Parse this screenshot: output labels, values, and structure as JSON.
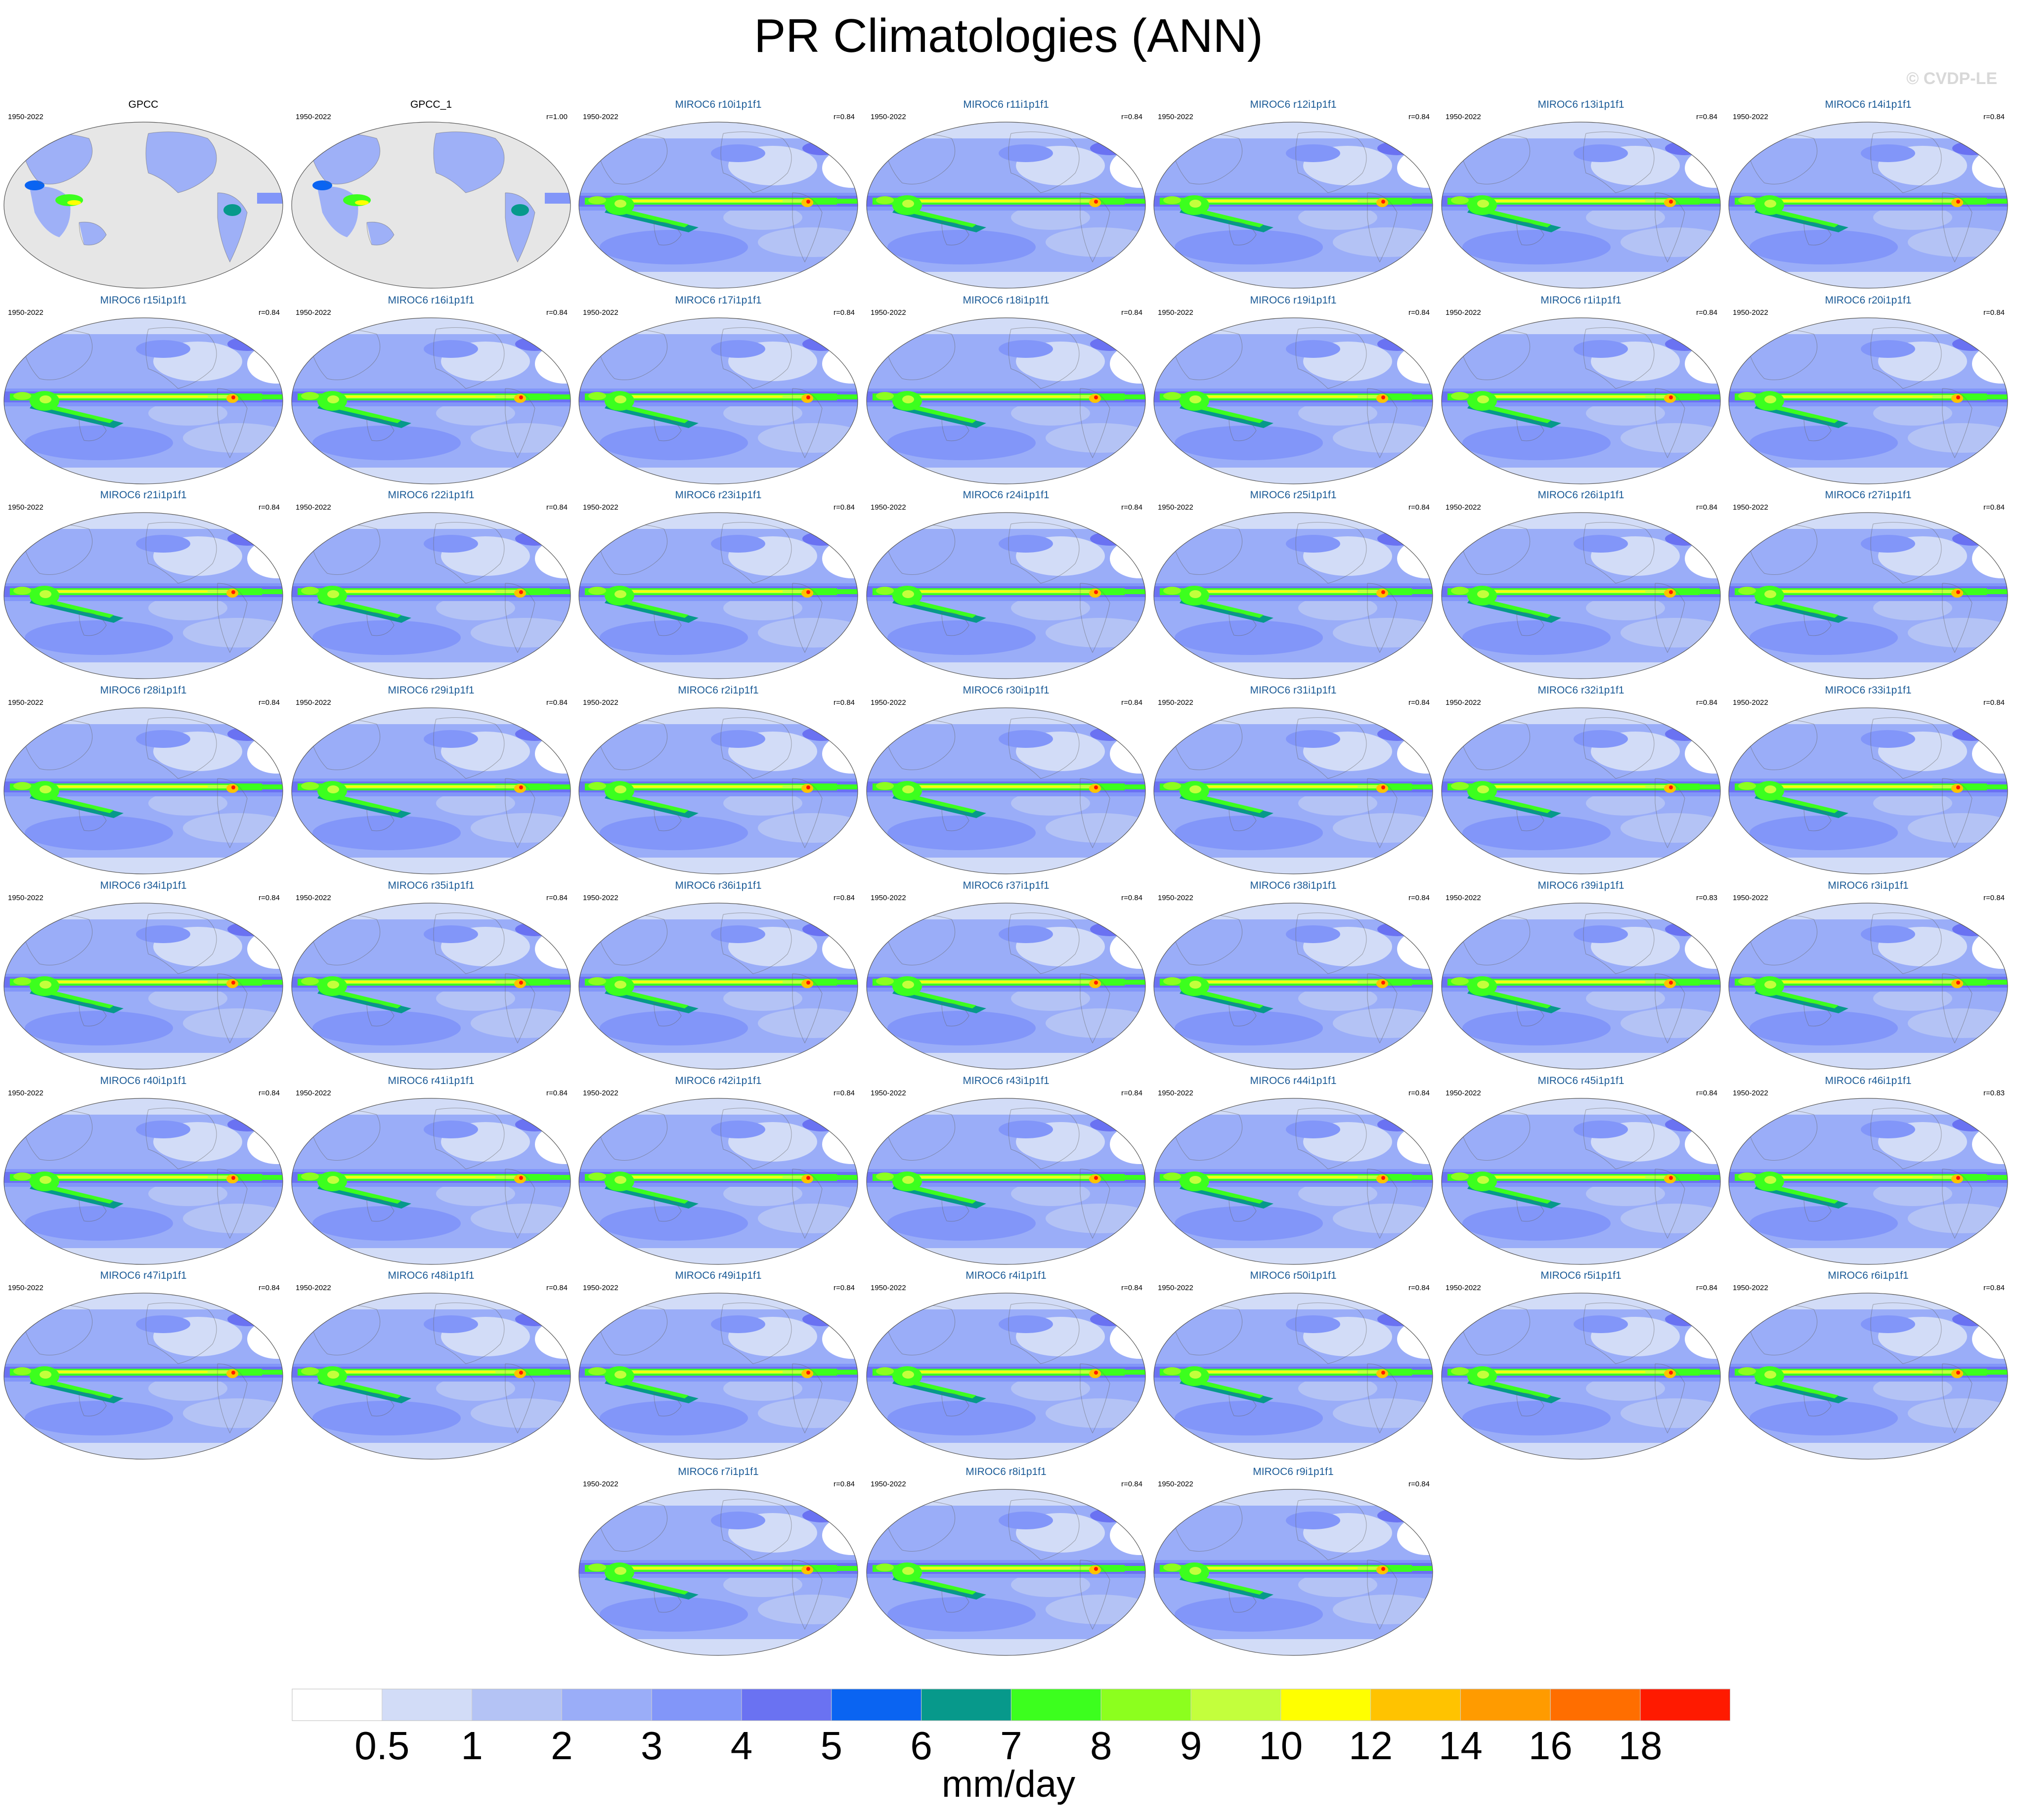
{
  "title": "PR Climatologies (ANN)",
  "watermark": "© CVDP-LE",
  "chart_data": {
    "type": "heatmap",
    "title": "PR Climatologies (ANN)",
    "units": "mm/day",
    "period": "1950-2022",
    "colorbar": {
      "ticks": [
        "0.5",
        "1",
        "2",
        "3",
        "4",
        "5",
        "6",
        "7",
        "8",
        "9",
        "10",
        "12",
        "14",
        "16",
        "18"
      ],
      "colors": [
        "#ffffff",
        "#d2dcf7",
        "#b4c3f5",
        "#9aadf8",
        "#8296f9",
        "#6a72f2",
        "#0a64f2",
        "#07998b",
        "#3cff1e",
        "#8cff1e",
        "#c3ff3c",
        "#ffff00",
        "#ffc300",
        "#ff9b00",
        "#ff6e00",
        "#ff1a00"
      ]
    },
    "panels": [
      {
        "name": "GPCC",
        "period": "1950-2022",
        "r": "",
        "obs": true
      },
      {
        "name": "GPCC_1",
        "period": "1950-2022",
        "r": "r=1.00",
        "obs": true
      },
      {
        "name": "MIROC6 r10i1p1f1",
        "period": "1950-2022",
        "r": "r=0.84"
      },
      {
        "name": "MIROC6 r11i1p1f1",
        "period": "1950-2022",
        "r": "r=0.84"
      },
      {
        "name": "MIROC6 r12i1p1f1",
        "period": "1950-2022",
        "r": "r=0.84"
      },
      {
        "name": "MIROC6 r13i1p1f1",
        "period": "1950-2022",
        "r": "r=0.84"
      },
      {
        "name": "MIROC6 r14i1p1f1",
        "period": "1950-2022",
        "r": "r=0.84"
      },
      {
        "name": "MIROC6 r15i1p1f1",
        "period": "1950-2022",
        "r": "r=0.84"
      },
      {
        "name": "MIROC6 r16i1p1f1",
        "period": "1950-2022",
        "r": "r=0.84"
      },
      {
        "name": "MIROC6 r17i1p1f1",
        "period": "1950-2022",
        "r": "r=0.84"
      },
      {
        "name": "MIROC6 r18i1p1f1",
        "period": "1950-2022",
        "r": "r=0.84"
      },
      {
        "name": "MIROC6 r19i1p1f1",
        "period": "1950-2022",
        "r": "r=0.84"
      },
      {
        "name": "MIROC6 r1i1p1f1",
        "period": "1950-2022",
        "r": "r=0.84"
      },
      {
        "name": "MIROC6 r20i1p1f1",
        "period": "1950-2022",
        "r": "r=0.84"
      },
      {
        "name": "MIROC6 r21i1p1f1",
        "period": "1950-2022",
        "r": "r=0.84"
      },
      {
        "name": "MIROC6 r22i1p1f1",
        "period": "1950-2022",
        "r": "r=0.84"
      },
      {
        "name": "MIROC6 r23i1p1f1",
        "period": "1950-2022",
        "r": "r=0.84"
      },
      {
        "name": "MIROC6 r24i1p1f1",
        "period": "1950-2022",
        "r": "r=0.84"
      },
      {
        "name": "MIROC6 r25i1p1f1",
        "period": "1950-2022",
        "r": "r=0.84"
      },
      {
        "name": "MIROC6 r26i1p1f1",
        "period": "1950-2022",
        "r": "r=0.84"
      },
      {
        "name": "MIROC6 r27i1p1f1",
        "period": "1950-2022",
        "r": "r=0.84"
      },
      {
        "name": "MIROC6 r28i1p1f1",
        "period": "1950-2022",
        "r": "r=0.84"
      },
      {
        "name": "MIROC6 r29i1p1f1",
        "period": "1950-2022",
        "r": "r=0.84"
      },
      {
        "name": "MIROC6 r2i1p1f1",
        "period": "1950-2022",
        "r": "r=0.84"
      },
      {
        "name": "MIROC6 r30i1p1f1",
        "period": "1950-2022",
        "r": "r=0.84"
      },
      {
        "name": "MIROC6 r31i1p1f1",
        "period": "1950-2022",
        "r": "r=0.84"
      },
      {
        "name": "MIROC6 r32i1p1f1",
        "period": "1950-2022",
        "r": "r=0.84"
      },
      {
        "name": "MIROC6 r33i1p1f1",
        "period": "1950-2022",
        "r": "r=0.84"
      },
      {
        "name": "MIROC6 r34i1p1f1",
        "period": "1950-2022",
        "r": "r=0.84"
      },
      {
        "name": "MIROC6 r35i1p1f1",
        "period": "1950-2022",
        "r": "r=0.84"
      },
      {
        "name": "MIROC6 r36i1p1f1",
        "period": "1950-2022",
        "r": "r=0.84"
      },
      {
        "name": "MIROC6 r37i1p1f1",
        "period": "1950-2022",
        "r": "r=0.84"
      },
      {
        "name": "MIROC6 r38i1p1f1",
        "period": "1950-2022",
        "r": "r=0.84"
      },
      {
        "name": "MIROC6 r39i1p1f1",
        "period": "1950-2022",
        "r": "r=0.83"
      },
      {
        "name": "MIROC6 r3i1p1f1",
        "period": "1950-2022",
        "r": "r=0.84"
      },
      {
        "name": "MIROC6 r40i1p1f1",
        "period": "1950-2022",
        "r": "r=0.84"
      },
      {
        "name": "MIROC6 r41i1p1f1",
        "period": "1950-2022",
        "r": "r=0.84"
      },
      {
        "name": "MIROC6 r42i1p1f1",
        "period": "1950-2022",
        "r": "r=0.84"
      },
      {
        "name": "MIROC6 r43i1p1f1",
        "period": "1950-2022",
        "r": "r=0.84"
      },
      {
        "name": "MIROC6 r44i1p1f1",
        "period": "1950-2022",
        "r": "r=0.84"
      },
      {
        "name": "MIROC6 r45i1p1f1",
        "period": "1950-2022",
        "r": "r=0.84"
      },
      {
        "name": "MIROC6 r46i1p1f1",
        "period": "1950-2022",
        "r": "r=0.83"
      },
      {
        "name": "MIROC6 r47i1p1f1",
        "period": "1950-2022",
        "r": "r=0.84"
      },
      {
        "name": "MIROC6 r48i1p1f1",
        "period": "1950-2022",
        "r": "r=0.84"
      },
      {
        "name": "MIROC6 r49i1p1f1",
        "period": "1950-2022",
        "r": "r=0.84"
      },
      {
        "name": "MIROC6 r4i1p1f1",
        "period": "1950-2022",
        "r": "r=0.84"
      },
      {
        "name": "MIROC6 r50i1p1f1",
        "period": "1950-2022",
        "r": "r=0.84"
      },
      {
        "name": "MIROC6 r5i1p1f1",
        "period": "1950-2022",
        "r": "r=0.84"
      },
      {
        "name": "MIROC6 r6i1p1f1",
        "period": "1950-2022",
        "r": "r=0.84"
      },
      {
        "name": "MIROC6 r7i1p1f1",
        "period": "1950-2022",
        "r": "r=0.84"
      },
      {
        "name": "MIROC6 r8i1p1f1",
        "period": "1950-2022",
        "r": "r=0.84"
      },
      {
        "name": "MIROC6 r9i1p1f1",
        "period": "1950-2022",
        "r": "r=0.84"
      }
    ]
  }
}
